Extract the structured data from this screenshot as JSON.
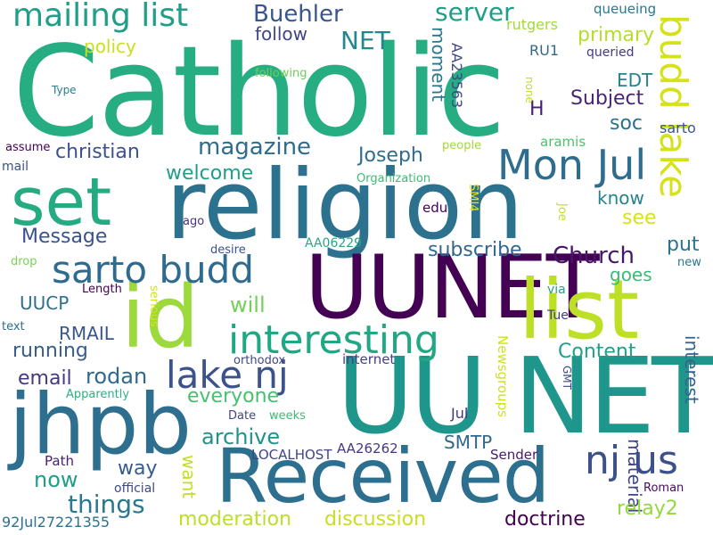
{
  "words": [
    {
      "text": "Catholic",
      "color": "#26ad81"
    },
    {
      "text": "religion",
      "color": "#2c718e"
    },
    {
      "text": "UUNET",
      "color": "#440154"
    },
    {
      "text": "UU NET",
      "color": "#1f968b"
    },
    {
      "text": "Received",
      "color": "#2d6f8e"
    },
    {
      "text": "jhpb",
      "color": "#2e6e8e"
    },
    {
      "text": "id",
      "color": "#9bd93c"
    },
    {
      "text": "list",
      "color": "#bddf26"
    },
    {
      "text": "set",
      "color": "#25ab82"
    },
    {
      "text": "Mon Jul",
      "color": "#2e6d8e"
    },
    {
      "text": "budd lake",
      "color": "#d5e21a"
    },
    {
      "text": "sarto budd",
      "color": "#2f6b8e"
    },
    {
      "text": "interesting",
      "color": "#22a785"
    },
    {
      "text": "lake nj",
      "color": "#3b528b"
    },
    {
      "text": "nj us",
      "color": "#3b518b"
    },
    {
      "text": "mailing list",
      "color": "#1f9e89"
    },
    {
      "text": "Buehler",
      "color": "#39568c"
    },
    {
      "text": "server",
      "color": "#1f9e89"
    },
    {
      "text": "NET",
      "color": "#24868e"
    },
    {
      "text": "follow",
      "color": "#414487"
    },
    {
      "text": "policy",
      "color": "#c8e020"
    },
    {
      "text": "primary",
      "color": "#b5de2b"
    },
    {
      "text": "queueing",
      "color": "#2a788e"
    },
    {
      "text": "rutgers",
      "color": "#a0da39"
    },
    {
      "text": "queried",
      "color": "#443983"
    },
    {
      "text": "following",
      "color": "#6ece58"
    },
    {
      "text": "RU1",
      "color": "#31688e"
    },
    {
      "text": "AA23563",
      "color": "#3e4989"
    },
    {
      "text": "moment",
      "color": "#2a788e"
    },
    {
      "text": "EDT",
      "color": "#25838e"
    },
    {
      "text": "Subject",
      "color": "#482475"
    },
    {
      "text": "H",
      "color": "#481f70"
    },
    {
      "text": "soc",
      "color": "#2d708e"
    },
    {
      "text": "sarto",
      "color": "#38588c"
    },
    {
      "text": "aramis",
      "color": "#4ac16d"
    },
    {
      "text": "none",
      "color": "#bddf26"
    },
    {
      "text": "Type",
      "color": "#287d8e"
    },
    {
      "text": "christian",
      "color": "#3b528b"
    },
    {
      "text": "magazine",
      "color": "#2f6c8e"
    },
    {
      "text": "Joseph",
      "color": "#2f6c8e"
    },
    {
      "text": "people",
      "color": "#9fda3a"
    },
    {
      "text": "assume",
      "color": "#440154"
    },
    {
      "text": "mail",
      "color": "#3b528b"
    },
    {
      "text": "welcome",
      "color": "#1f9e89"
    },
    {
      "text": "Organization",
      "color": "#3dbc74"
    },
    {
      "text": "SMI4",
      "color": "#e5e419"
    },
    {
      "text": "know",
      "color": "#26828e"
    },
    {
      "text": "edu",
      "color": "#440154"
    },
    {
      "text": "Joe",
      "color": "#c2df23"
    },
    {
      "text": "see",
      "color": "#d8e219"
    },
    {
      "text": "ago",
      "color": "#46337f"
    },
    {
      "text": "Message",
      "color": "#3b528b"
    },
    {
      "text": "AA06229",
      "color": "#22a884"
    },
    {
      "text": "subscribe",
      "color": "#31678e"
    },
    {
      "text": "Church",
      "color": "#481668"
    },
    {
      "text": "put",
      "color": "#2d718e"
    },
    {
      "text": "desire",
      "color": "#3b528b"
    },
    {
      "text": "drop",
      "color": "#7ad151"
    },
    {
      "text": "new",
      "color": "#2a788e"
    },
    {
      "text": "goes",
      "color": "#3aba76"
    },
    {
      "text": "Length",
      "color": "#440154"
    },
    {
      "text": "serious",
      "color": "#d2e21b"
    },
    {
      "text": "via",
      "color": "#20a386"
    },
    {
      "text": "UUCP",
      "color": "#2d718e"
    },
    {
      "text": "will",
      "color": "#73d056"
    },
    {
      "text": "text",
      "color": "#2e6e8e"
    },
    {
      "text": "Tue",
      "color": "#433e85"
    },
    {
      "text": "RMAIL",
      "color": "#38588c"
    },
    {
      "text": "running",
      "color": "#365d8d"
    },
    {
      "text": "Content",
      "color": "#1fa088"
    },
    {
      "text": "interest",
      "color": "#33638d"
    },
    {
      "text": "orthodox",
      "color": "#404688"
    },
    {
      "text": "internet",
      "color": "#424086"
    },
    {
      "text": "email",
      "color": "#443a83"
    },
    {
      "text": "rodan",
      "color": "#30698e"
    },
    {
      "text": "Newsgroups",
      "color": "#d0e11c"
    },
    {
      "text": "GMT",
      "color": "#3e4989"
    },
    {
      "text": "everyone",
      "color": "#46c06f"
    },
    {
      "text": "Apparently",
      "color": "#2ab07f"
    },
    {
      "text": "Date",
      "color": "#414487"
    },
    {
      "text": "weeks",
      "color": "#3dbc74"
    },
    {
      "text": "Jul",
      "color": "#46337f"
    },
    {
      "text": "archive",
      "color": "#20928c"
    },
    {
      "text": "SMTP",
      "color": "#31678e"
    },
    {
      "text": "AA26262",
      "color": "#443983"
    },
    {
      "text": "LOCALHOST",
      "color": "#414487"
    },
    {
      "text": "material",
      "color": "#404588"
    },
    {
      "text": "Sender",
      "color": "#481a6c"
    },
    {
      "text": "way",
      "color": "#365c8d"
    },
    {
      "text": "want",
      "color": "#c0df25"
    },
    {
      "text": "Path",
      "color": "#482071"
    },
    {
      "text": "now",
      "color": "#1f9e89"
    },
    {
      "text": "official",
      "color": "#3e4989"
    },
    {
      "text": "Roman",
      "color": "#460b5e"
    },
    {
      "text": "things",
      "color": "#2a778e"
    },
    {
      "text": "relay2",
      "color": "#93d741"
    },
    {
      "text": "moderation",
      "color": "#bddf26"
    },
    {
      "text": "discussion",
      "color": "#c8e020"
    },
    {
      "text": "doctrine",
      "color": "#440154"
    },
    {
      "text": "92Jul27221355",
      "color": "#2d718e"
    }
  ]
}
